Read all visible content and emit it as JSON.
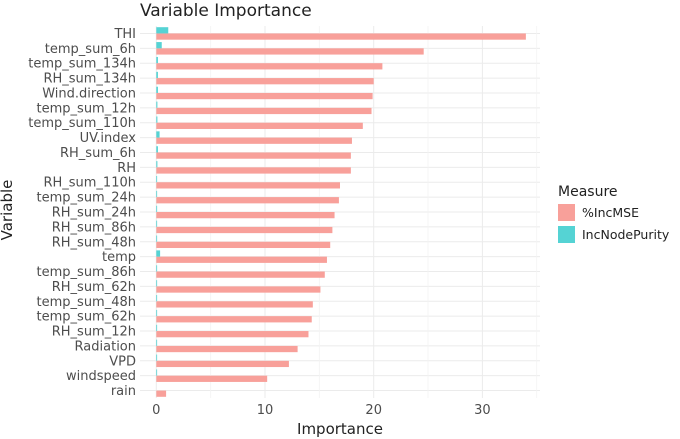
{
  "chart_data": {
    "type": "bar",
    "orientation": "horizontal",
    "title": "Variable Importance",
    "xlabel": "Importance",
    "ylabel": "Variable",
    "xlim": [
      -1.5,
      35.3
    ],
    "xticks": [
      0,
      10,
      20,
      30
    ],
    "grid": true,
    "legend": {
      "title": "Measure",
      "placement": "right",
      "entries": [
        {
          "label": "%IncMSE",
          "color": "#F8A09A"
        },
        {
          "label": "IncNodePurity",
          "color": "#55D3D4"
        }
      ]
    },
    "categories": [
      "THI",
      "temp_sum_6h",
      "temp_sum_134h",
      "RH_sum_134h",
      "Wind.direction",
      "temp_sum_12h",
      "temp_sum_110h",
      "UV.index",
      "RH_sum_6h",
      "RH",
      "RH_sum_110h",
      "temp_sum_24h",
      "RH_sum_24h",
      "RH_sum_86h",
      "RH_sum_48h",
      "temp",
      "temp_sum_86h",
      "RH_sum_62h",
      "temp_sum_48h",
      "temp_sum_62h",
      "RH_sum_12h",
      "Radiation",
      "VPD",
      "windspeed",
      "rain"
    ],
    "series": [
      {
        "name": "%IncMSE",
        "color": "#F8A09A",
        "values": [
          34.0,
          24.6,
          20.8,
          20.0,
          19.9,
          19.8,
          19.0,
          18.0,
          17.9,
          17.9,
          16.9,
          16.8,
          16.4,
          16.2,
          16.0,
          15.7,
          15.5,
          15.1,
          14.4,
          14.3,
          14.0,
          13.0,
          12.2,
          10.2,
          0.9
        ]
      },
      {
        "name": "IncNodePurity",
        "color": "#55D3D4",
        "values": [
          1.1,
          0.5,
          0.15,
          0.15,
          0.15,
          0.1,
          0.1,
          0.3,
          0.15,
          0.1,
          0.05,
          0.05,
          0.05,
          0.05,
          0.05,
          0.35,
          0.05,
          0.05,
          0.05,
          0.05,
          0.05,
          0.05,
          0.05,
          0.05,
          0.0
        ]
      }
    ]
  }
}
